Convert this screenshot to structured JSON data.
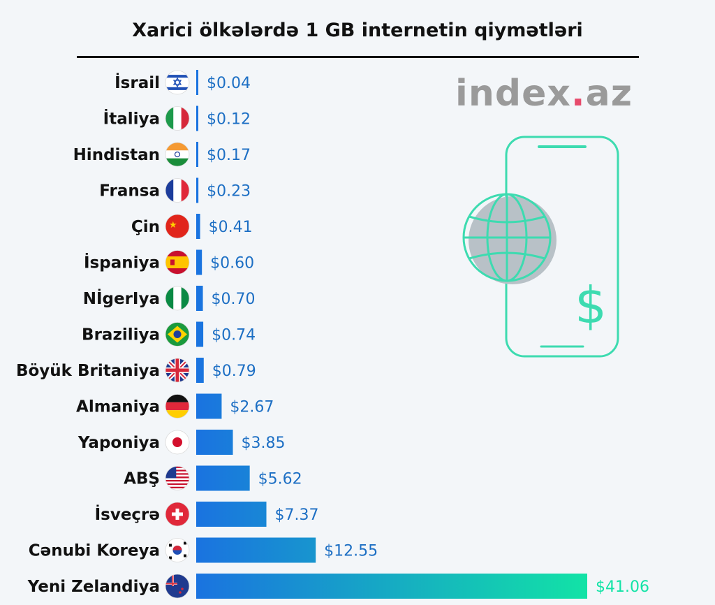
{
  "title": "Xarici ölkələrdə 1 GB internetin qiymətləri",
  "logo": {
    "name": "index",
    "dot": ".",
    "tld": "az"
  },
  "illustration": {
    "icon": "phone-globe-dollar-icon",
    "dollar": "$",
    "color": "#3ddbb0"
  },
  "colors": {
    "bar_start": "#1a73e0",
    "bar_end": "#12e3a6",
    "value_text": "#1d6fc4"
  },
  "chart_data": {
    "type": "bar",
    "orientation": "horizontal",
    "categories": [
      "İsrail",
      "İtaliya",
      "Hindistan",
      "Fransa",
      "Çin",
      "İspaniya",
      "NİgerIya",
      "Braziliya",
      "Böyük Britaniya",
      "Almaniya",
      "Yaponiya",
      "ABŞ",
      "İsveçrə",
      "Cənubi Koreya",
      "Yeni Zelandiya"
    ],
    "values": [
      0.04,
      0.12,
      0.17,
      0.23,
      0.41,
      0.6,
      0.7,
      0.74,
      0.79,
      2.67,
      3.85,
      5.62,
      7.37,
      12.55,
      41.06
    ],
    "value_labels": [
      "$0.04",
      "$0.12",
      "$0.17",
      "$0.23",
      "$0.41",
      "$0.60",
      "$0.70",
      "$0.74",
      "$0.79",
      "$2.67",
      "$3.85",
      "$5.62",
      "$7.37",
      "$12.55",
      "$41.06"
    ],
    "flags": [
      "israel-flag-icon",
      "italy-flag-icon",
      "india-flag-icon",
      "france-flag-icon",
      "china-flag-icon",
      "spain-flag-icon",
      "nigeria-flag-icon",
      "brazil-flag-icon",
      "uk-flag-icon",
      "germany-flag-icon",
      "japan-flag-icon",
      "usa-flag-icon",
      "switzerland-flag-icon",
      "south-korea-flag-icon",
      "new-zealand-flag-icon"
    ],
    "xlim": [
      0,
      41.06
    ],
    "grid": false,
    "legend": "none"
  }
}
